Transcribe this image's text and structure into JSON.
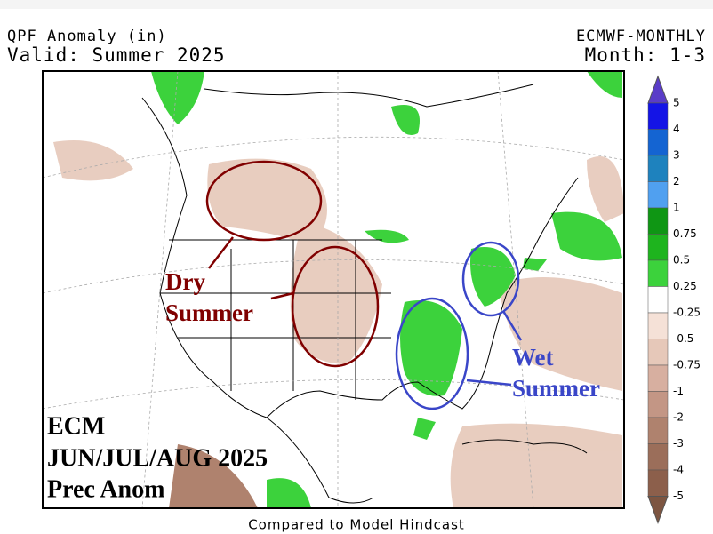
{
  "header": {
    "title": "QPF Anomaly (in)",
    "subtitle": "Valid: Summer 2025",
    "model": "ECMWF-MONTHLY",
    "period": "Month: 1-3"
  },
  "annotations": {
    "dry": [
      "Dry",
      "Summer"
    ],
    "wet": [
      "Wet",
      "Summer"
    ],
    "caption": [
      "ECM",
      "JUN/JUL/AUG 2025",
      "Prec Anom"
    ]
  },
  "footer": "Compared to Model Hindcast",
  "legend": {
    "labels": [
      "5",
      "4",
      "3",
      "2",
      "1",
      "0.75",
      "0.5",
      "0.25",
      "-0.25",
      "-0.5",
      "-0.75",
      "-1",
      "-2",
      "-3",
      "-4",
      "-5"
    ],
    "colors": [
      "#1414e6",
      "#1464d2",
      "#1e82be",
      "#50a0f0",
      "#0f9614",
      "#1eb41e",
      "#3cd23c",
      "#ffffff",
      "#f5e1d7",
      "#e6c8b9",
      "#d7afa0",
      "#c39685",
      "#af826e",
      "#9b6e5a",
      "#8c5f4b"
    ],
    "top_color": "#5a3cc8",
    "bottom_color": "#7d5541"
  }
}
